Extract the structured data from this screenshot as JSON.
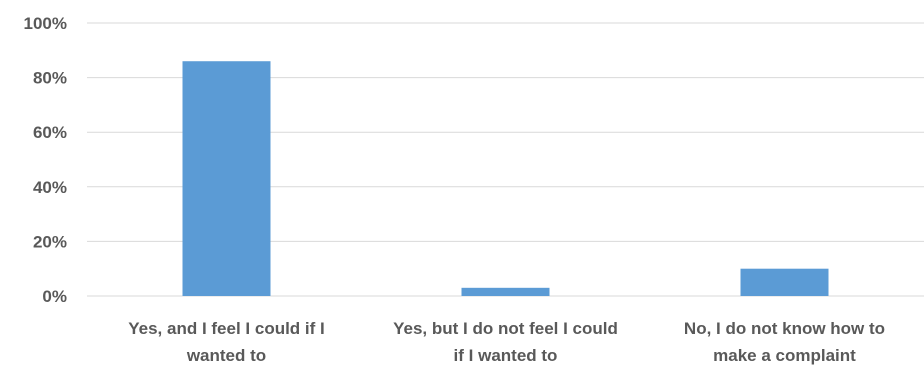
{
  "chart_data": {
    "type": "bar",
    "categories": [
      [
        "Yes, and I feel I could if I",
        "wanted to"
      ],
      [
        "Yes, but I do not feel I could",
        "if I wanted to"
      ],
      [
        "No, I do not know how to",
        "make a complaint"
      ]
    ],
    "values": [
      86,
      3,
      10
    ],
    "value_unit": "%",
    "ylim": [
      0,
      100
    ],
    "yticks": [
      0,
      20,
      40,
      60,
      80,
      100
    ],
    "ytick_labels": [
      "0%",
      "20%",
      "40%",
      "60%",
      "80%",
      "100%"
    ],
    "grid": true,
    "legend": "none",
    "title": "",
    "xlabel": "",
    "ylabel": "",
    "colors": {
      "bar": "#5B9BD5",
      "grid": "#D9D9D9",
      "text": "#595959"
    }
  }
}
